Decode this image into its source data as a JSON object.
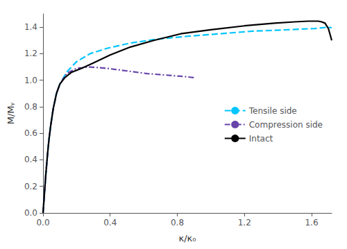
{
  "chart_data": {
    "type": "line",
    "xlabel": "κ/κ₀",
    "ylabel": "M/Mᵧ",
    "xlim": [
      0.0,
      1.72
    ],
    "ylim": [
      0.0,
      1.5
    ],
    "xticks": [
      {
        "value": 0.0,
        "label": "0.0"
      },
      0.4,
      0.8,
      1.2,
      1.6
    ],
    "yticks": [
      {
        "value": 0.0,
        "label": "0.0"
      },
      0.2,
      0.4,
      0.6,
      0.8,
      {
        "value": 1.0,
        "label": "1.0"
      },
      1.2,
      1.4
    ],
    "grid": false,
    "legend": "right",
    "series": [
      {
        "name": "Tensile side",
        "color": "#00C5FF",
        "line_style": "dashed",
        "x": [
          0.0,
          0.004,
          0.008,
          0.012,
          0.016,
          0.022,
          0.028,
          0.036,
          0.046,
          0.06,
          0.08,
          0.1,
          0.14,
          0.2,
          0.28,
          0.38,
          0.52,
          0.68,
          0.85,
          1.05,
          1.25,
          1.45,
          1.62,
          1.7,
          1.72
        ],
        "values": [
          0.0,
          0.07,
          0.14,
          0.21,
          0.28,
          0.37,
          0.46,
          0.56,
          0.66,
          0.78,
          0.9,
          0.97,
          1.06,
          1.14,
          1.2,
          1.24,
          1.28,
          1.31,
          1.33,
          1.35,
          1.37,
          1.38,
          1.39,
          1.4,
          1.395
        ]
      },
      {
        "name": "Compression side",
        "color": "#6644AA",
        "line_style": "dashdot",
        "x": [
          0.0,
          0.004,
          0.008,
          0.012,
          0.016,
          0.022,
          0.028,
          0.036,
          0.046,
          0.06,
          0.08,
          0.1,
          0.14,
          0.2,
          0.28,
          0.38,
          0.5,
          0.62,
          0.72,
          0.82,
          0.9
        ],
        "values": [
          0.0,
          0.07,
          0.14,
          0.21,
          0.28,
          0.37,
          0.46,
          0.56,
          0.66,
          0.78,
          0.9,
          0.97,
          1.05,
          1.09,
          1.1,
          1.09,
          1.07,
          1.05,
          1.04,
          1.03,
          1.02
        ]
      },
      {
        "name": "Intact",
        "color": "#000000",
        "line_style": "solid",
        "x": [
          0.0,
          0.004,
          0.008,
          0.012,
          0.016,
          0.022,
          0.028,
          0.036,
          0.046,
          0.06,
          0.08,
          0.1,
          0.13,
          0.17,
          0.23,
          0.3,
          0.4,
          0.52,
          0.66,
          0.82,
          1.0,
          1.2,
          1.38,
          1.5,
          1.58,
          1.62,
          1.64,
          1.66,
          1.68,
          1.7,
          1.72
        ],
        "values": [
          0.0,
          0.07,
          0.14,
          0.21,
          0.28,
          0.37,
          0.46,
          0.56,
          0.66,
          0.78,
          0.9,
          0.97,
          1.02,
          1.06,
          1.09,
          1.13,
          1.19,
          1.25,
          1.3,
          1.35,
          1.38,
          1.41,
          1.43,
          1.44,
          1.445,
          1.445,
          1.445,
          1.44,
          1.43,
          1.39,
          1.3
        ]
      }
    ]
  }
}
